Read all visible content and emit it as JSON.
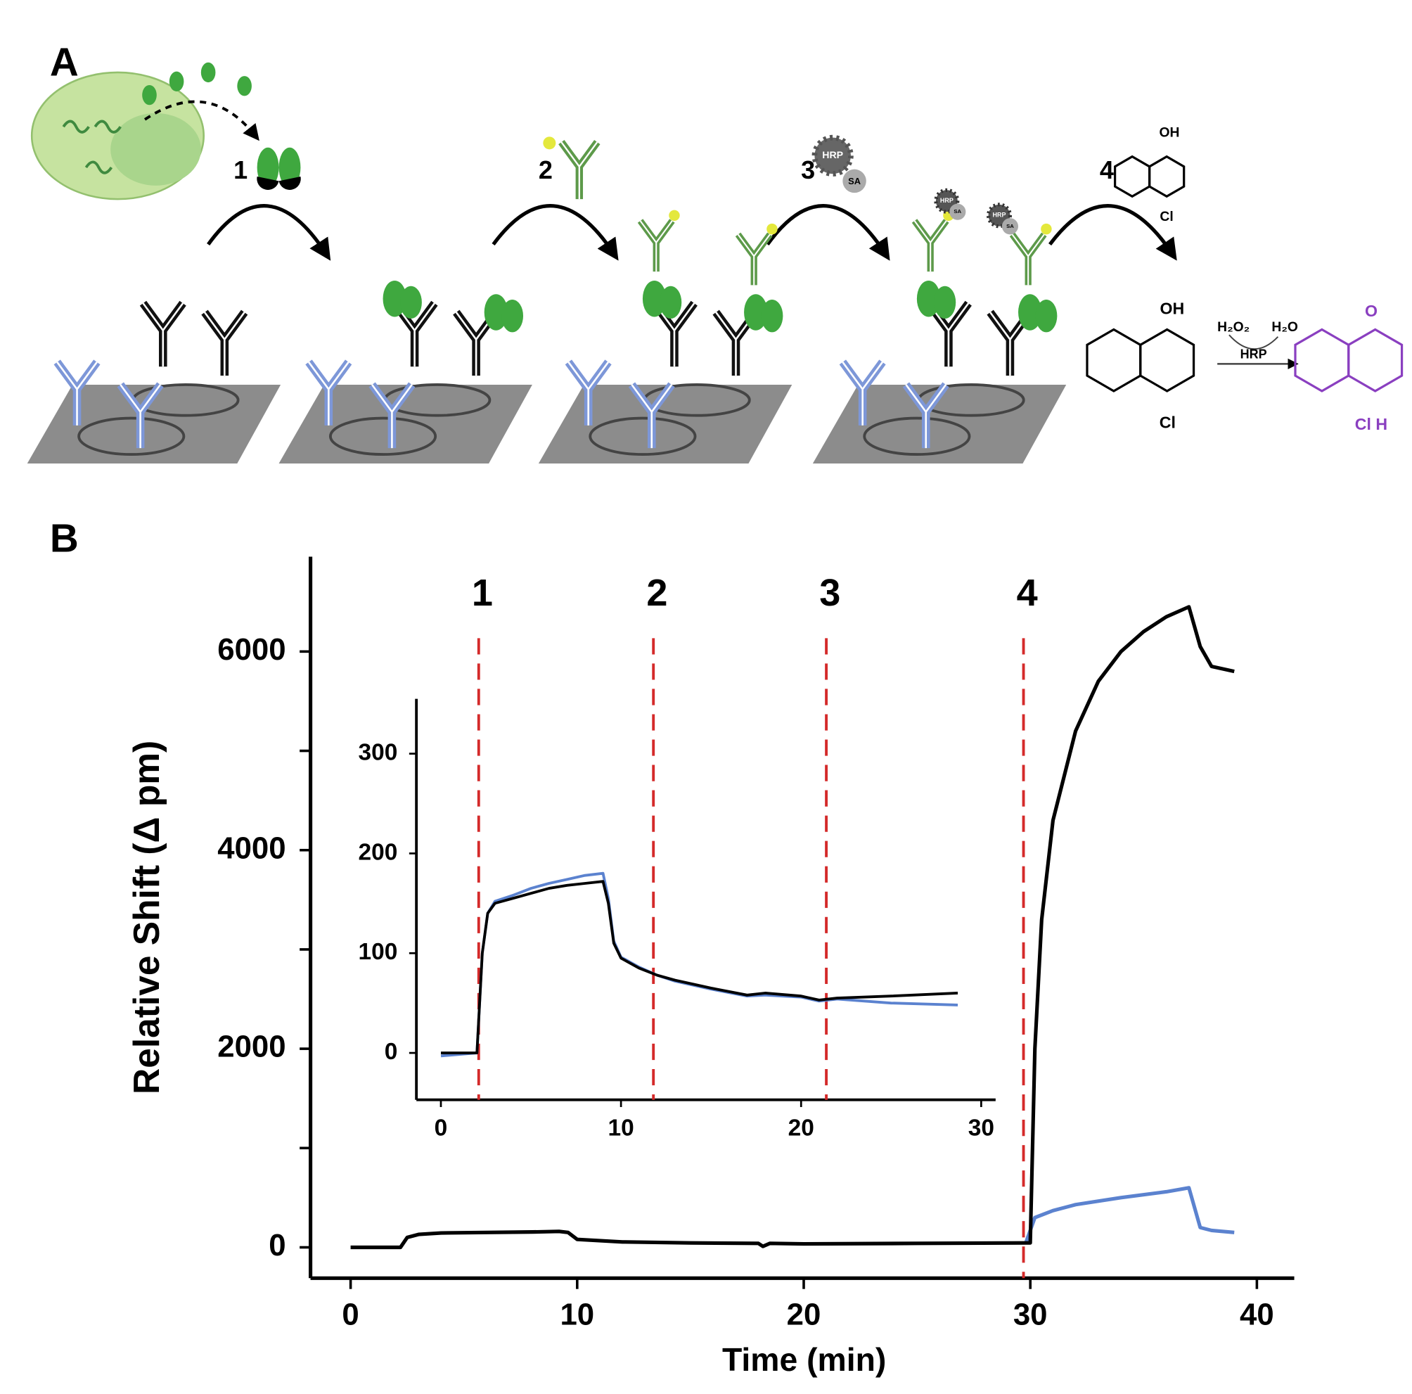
{
  "panel_a": {
    "label": "A",
    "steps": [
      "1",
      "2",
      "3",
      "4"
    ],
    "hrp": "HRP",
    "sa": "SA",
    "oh": "OH",
    "cl": "Cl",
    "h2o2": "H₂O₂",
    "h2o": "H₂O",
    "enzyme": "HRP",
    "o": "O",
    "cl_h": "Cl  H"
  },
  "panel_b": {
    "label": "B"
  },
  "chart_data": [
    {
      "type": "line",
      "xlabel": "Time (min)",
      "ylabel": "Relative Shift (Δ pm)",
      "xlim": [
        -1.77,
        41.65
      ],
      "ylim": [
        -310,
        6955
      ],
      "xticks": [
        0,
        10,
        20,
        30,
        40
      ],
      "yticks": [
        0,
        2000,
        4000,
        6000
      ],
      "yticks_minor": [
        1000,
        3000,
        5000
      ],
      "markers": [
        {
          "value": 29.7,
          "label": "4"
        }
      ],
      "marker_color": "#d42a2a",
      "series": [
        {
          "color": "#5b82cf",
          "x": [
            29.8,
            30.2,
            31,
            32,
            34,
            36,
            37,
            37.5,
            38,
            39
          ],
          "values": [
            45,
            300,
            370,
            430,
            500,
            560,
            600,
            200,
            170,
            150
          ]
        },
        {
          "color": "#000000",
          "x": [
            0,
            2.2,
            2.5,
            3,
            4,
            6,
            8,
            9.2,
            9.6,
            10,
            12,
            15,
            18,
            18.2,
            18.5,
            20,
            25,
            29.8,
            30,
            30.2,
            30.5,
            31,
            32,
            33,
            34,
            35,
            36,
            37,
            37.5,
            38,
            39
          ],
          "values": [
            0,
            0,
            100,
            130,
            145,
            150,
            155,
            160,
            150,
            80,
            55,
            45,
            40,
            10,
            40,
            35,
            40,
            45,
            45,
            2000,
            3300,
            4300,
            5200,
            5700,
            6000,
            6200,
            6350,
            6450,
            6050,
            5850,
            5800
          ]
        }
      ]
    },
    {
      "type": "line",
      "xlim": [
        -1.36,
        30.8
      ],
      "ylim": [
        -47,
        355
      ],
      "xticks": [
        0,
        10,
        20,
        30
      ],
      "yticks": [
        0,
        100,
        200,
        300
      ],
      "markers": [
        {
          "value": 2.1,
          "label": "1"
        },
        {
          "value": 11.8,
          "label": "2"
        },
        {
          "value": 21.4,
          "label": "3"
        }
      ],
      "marker_color": "#d42a2a",
      "series": [
        {
          "color": "#5b82cf",
          "x": [
            0,
            2,
            2.3,
            2.6,
            3,
            4,
            5,
            6,
            7,
            8,
            9,
            9.3,
            9.6,
            10,
            11,
            12,
            13,
            15,
            17,
            18,
            20,
            21,
            22,
            25,
            28.7
          ],
          "values": [
            -3,
            0,
            100,
            140,
            152,
            158,
            165,
            170,
            174,
            178,
            180,
            155,
            112,
            96,
            86,
            78,
            72,
            64,
            57,
            58,
            56,
            52,
            54,
            50,
            48
          ]
        },
        {
          "color": "#000000",
          "x": [
            0,
            2,
            2.3,
            2.6,
            3,
            4,
            5,
            6,
            7,
            8,
            9,
            9.3,
            9.6,
            10,
            11,
            12,
            13,
            15,
            17,
            18,
            20,
            21,
            22,
            25,
            28.7
          ],
          "values": [
            0,
            0,
            100,
            140,
            150,
            155,
            160,
            165,
            168,
            170,
            172,
            150,
            110,
            95,
            85,
            78,
            73,
            65,
            58,
            60,
            57,
            53,
            55,
            57,
            60
          ]
        }
      ]
    }
  ]
}
